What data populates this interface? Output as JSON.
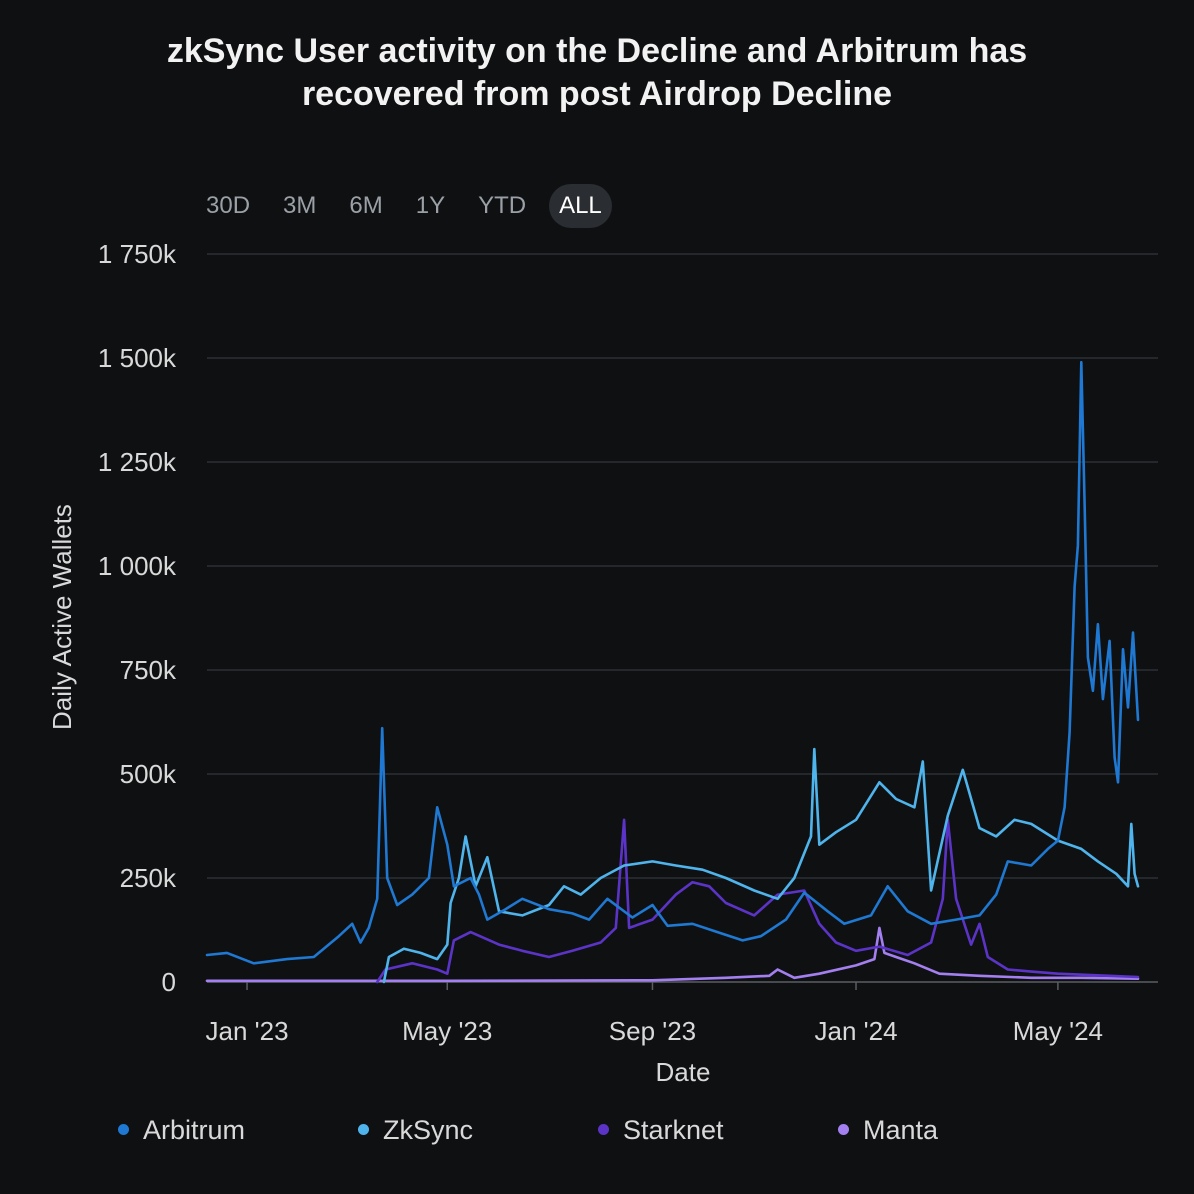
{
  "chart_data": {
    "type": "line",
    "title": [
      "zkSync User activity on the Decline and Arbitrum has",
      "recovered from post Airdrop Decline"
    ],
    "xlabel": "Date",
    "ylabel": "Daily Active Wallets",
    "ylim": [
      0,
      1750
    ],
    "yticks": [
      0,
      250,
      500,
      750,
      1000,
      1250,
      1500,
      1750
    ],
    "ytick_labels": [
      "0",
      "250k",
      "500k",
      "750k",
      "1 000k",
      "1 250k",
      "1 500k",
      "1 750k"
    ],
    "xlim": [
      "2022-12-08",
      "2024-06-30"
    ],
    "xticks": [
      "2023-01-01",
      "2023-05-01",
      "2023-09-01",
      "2024-01-01",
      "2024-05-01"
    ],
    "xtick_labels": [
      "Jan '23",
      "May '23",
      "Sep '23",
      "Jan '24",
      "May '24"
    ],
    "grid": true,
    "legend_position": "bottom",
    "series": [
      {
        "name": "Arbitrum",
        "color": "#1f78d1",
        "points": [
          [
            "2022-12-08",
            65
          ],
          [
            "2022-12-20",
            70
          ],
          [
            "2023-01-05",
            45
          ],
          [
            "2023-01-25",
            55
          ],
          [
            "2023-02-10",
            60
          ],
          [
            "2023-02-25",
            110
          ],
          [
            "2023-03-05",
            140
          ],
          [
            "2023-03-10",
            95
          ],
          [
            "2023-03-15",
            130
          ],
          [
            "2023-03-20",
            200
          ],
          [
            "2023-03-23",
            610
          ],
          [
            "2023-03-26",
            250
          ],
          [
            "2023-04-01",
            185
          ],
          [
            "2023-04-10",
            210
          ],
          [
            "2023-04-20",
            250
          ],
          [
            "2023-04-25",
            420
          ],
          [
            "2023-05-01",
            330
          ],
          [
            "2023-05-05",
            230
          ],
          [
            "2023-05-15",
            250
          ],
          [
            "2023-05-20",
            210
          ],
          [
            "2023-05-25",
            150
          ],
          [
            "2023-06-05",
            175
          ],
          [
            "2023-06-15",
            200
          ],
          [
            "2023-07-01",
            175
          ],
          [
            "2023-07-15",
            165
          ],
          [
            "2023-07-25",
            150
          ],
          [
            "2023-08-05",
            200
          ],
          [
            "2023-08-20",
            155
          ],
          [
            "2023-09-01",
            185
          ],
          [
            "2023-09-10",
            135
          ],
          [
            "2023-09-25",
            140
          ],
          [
            "2023-10-10",
            120
          ],
          [
            "2023-10-25",
            100
          ],
          [
            "2023-11-05",
            110
          ],
          [
            "2023-11-20",
            150
          ],
          [
            "2023-12-01",
            215
          ],
          [
            "2023-12-15",
            170
          ],
          [
            "2023-12-25",
            140
          ],
          [
            "2024-01-10",
            160
          ],
          [
            "2024-01-20",
            230
          ],
          [
            "2024-02-01",
            170
          ],
          [
            "2024-02-15",
            140
          ],
          [
            "2024-03-01",
            150
          ],
          [
            "2024-03-15",
            160
          ],
          [
            "2024-03-25",
            210
          ],
          [
            "2024-04-01",
            290
          ],
          [
            "2024-04-15",
            280
          ],
          [
            "2024-04-25",
            320
          ],
          [
            "2024-05-01",
            340
          ],
          [
            "2024-05-05",
            420
          ],
          [
            "2024-05-08",
            600
          ],
          [
            "2024-05-11",
            950
          ],
          [
            "2024-05-13",
            1050
          ],
          [
            "2024-05-15",
            1490
          ],
          [
            "2024-05-17",
            1150
          ],
          [
            "2024-05-19",
            780
          ],
          [
            "2024-05-22",
            700
          ],
          [
            "2024-05-25",
            860
          ],
          [
            "2024-05-28",
            680
          ],
          [
            "2024-06-01",
            820
          ],
          [
            "2024-06-04",
            540
          ],
          [
            "2024-06-06",
            480
          ],
          [
            "2024-06-09",
            800
          ],
          [
            "2024-06-12",
            660
          ],
          [
            "2024-06-15",
            840
          ],
          [
            "2024-06-18",
            630
          ]
        ]
      },
      {
        "name": "ZkSync",
        "color": "#4fb4ec",
        "points": [
          [
            "2023-03-24",
            0
          ],
          [
            "2023-03-27",
            60
          ],
          [
            "2023-04-05",
            80
          ],
          [
            "2023-04-15",
            70
          ],
          [
            "2023-04-25",
            55
          ],
          [
            "2023-05-01",
            90
          ],
          [
            "2023-05-03",
            190
          ],
          [
            "2023-05-08",
            250
          ],
          [
            "2023-05-12",
            350
          ],
          [
            "2023-05-18",
            230
          ],
          [
            "2023-05-25",
            300
          ],
          [
            "2023-06-01",
            170
          ],
          [
            "2023-06-15",
            160
          ],
          [
            "2023-07-01",
            185
          ],
          [
            "2023-07-10",
            230
          ],
          [
            "2023-07-20",
            210
          ],
          [
            "2023-08-01",
            250
          ],
          [
            "2023-08-15",
            280
          ],
          [
            "2023-09-01",
            290
          ],
          [
            "2023-09-15",
            280
          ],
          [
            "2023-10-01",
            270
          ],
          [
            "2023-10-15",
            250
          ],
          [
            "2023-11-01",
            220
          ],
          [
            "2023-11-15",
            200
          ],
          [
            "2023-11-25",
            250
          ],
          [
            "2023-12-05",
            350
          ],
          [
            "2023-12-07",
            560
          ],
          [
            "2023-12-10",
            330
          ],
          [
            "2023-12-20",
            360
          ],
          [
            "2024-01-01",
            390
          ],
          [
            "2024-01-15",
            480
          ],
          [
            "2024-01-25",
            440
          ],
          [
            "2024-02-05",
            420
          ],
          [
            "2024-02-10",
            530
          ],
          [
            "2024-02-15",
            220
          ],
          [
            "2024-02-25",
            400
          ],
          [
            "2024-03-05",
            510
          ],
          [
            "2024-03-15",
            370
          ],
          [
            "2024-03-25",
            350
          ],
          [
            "2024-04-05",
            390
          ],
          [
            "2024-04-15",
            380
          ],
          [
            "2024-05-01",
            340
          ],
          [
            "2024-05-15",
            320
          ],
          [
            "2024-05-25",
            290
          ],
          [
            "2024-06-05",
            260
          ],
          [
            "2024-06-12",
            230
          ],
          [
            "2024-06-14",
            380
          ],
          [
            "2024-06-16",
            260
          ],
          [
            "2024-06-18",
            230
          ]
        ]
      },
      {
        "name": "Starknet",
        "color": "#5b34c7",
        "points": [
          [
            "2023-03-20",
            0
          ],
          [
            "2023-03-25",
            30
          ],
          [
            "2023-04-10",
            45
          ],
          [
            "2023-04-25",
            30
          ],
          [
            "2023-05-01",
            20
          ],
          [
            "2023-05-05",
            100
          ],
          [
            "2023-05-15",
            120
          ],
          [
            "2023-06-01",
            90
          ],
          [
            "2023-06-15",
            75
          ],
          [
            "2023-07-01",
            60
          ],
          [
            "2023-07-15",
            75
          ],
          [
            "2023-08-01",
            95
          ],
          [
            "2023-08-10",
            130
          ],
          [
            "2023-08-15",
            390
          ],
          [
            "2023-08-18",
            130
          ],
          [
            "2023-09-01",
            150
          ],
          [
            "2023-09-15",
            210
          ],
          [
            "2023-09-25",
            240
          ],
          [
            "2023-10-05",
            230
          ],
          [
            "2023-10-15",
            190
          ],
          [
            "2023-11-01",
            160
          ],
          [
            "2023-11-15",
            210
          ],
          [
            "2023-12-01",
            220
          ],
          [
            "2023-12-10",
            140
          ],
          [
            "2023-12-20",
            95
          ],
          [
            "2024-01-01",
            75
          ],
          [
            "2024-01-15",
            85
          ],
          [
            "2024-02-01",
            65
          ],
          [
            "2024-02-15",
            95
          ],
          [
            "2024-02-22",
            200
          ],
          [
            "2024-02-25",
            390
          ],
          [
            "2024-03-01",
            200
          ],
          [
            "2024-03-10",
            90
          ],
          [
            "2024-03-15",
            140
          ],
          [
            "2024-03-20",
            60
          ],
          [
            "2024-04-01",
            30
          ],
          [
            "2024-04-15",
            25
          ],
          [
            "2024-05-01",
            20
          ],
          [
            "2024-06-01",
            15
          ],
          [
            "2024-06-18",
            12
          ]
        ]
      },
      {
        "name": "Manta",
        "color": "#a37ff0",
        "points": [
          [
            "2022-12-08",
            3
          ],
          [
            "2023-05-01",
            3
          ],
          [
            "2023-09-01",
            4
          ],
          [
            "2023-10-15",
            10
          ],
          [
            "2023-11-10",
            15
          ],
          [
            "2023-11-15",
            30
          ],
          [
            "2023-11-25",
            10
          ],
          [
            "2023-12-10",
            20
          ],
          [
            "2024-01-01",
            40
          ],
          [
            "2024-01-12",
            55
          ],
          [
            "2024-01-15",
            130
          ],
          [
            "2024-01-18",
            70
          ],
          [
            "2024-01-25",
            60
          ],
          [
            "2024-02-05",
            45
          ],
          [
            "2024-02-20",
            20
          ],
          [
            "2024-03-15",
            15
          ],
          [
            "2024-04-15",
            10
          ],
          [
            "2024-05-15",
            10
          ],
          [
            "2024-06-18",
            8
          ]
        ]
      }
    ]
  },
  "range_selector": {
    "buttons": [
      "30D",
      "3M",
      "6M",
      "1Y",
      "YTD",
      "ALL"
    ],
    "selected": "ALL"
  }
}
